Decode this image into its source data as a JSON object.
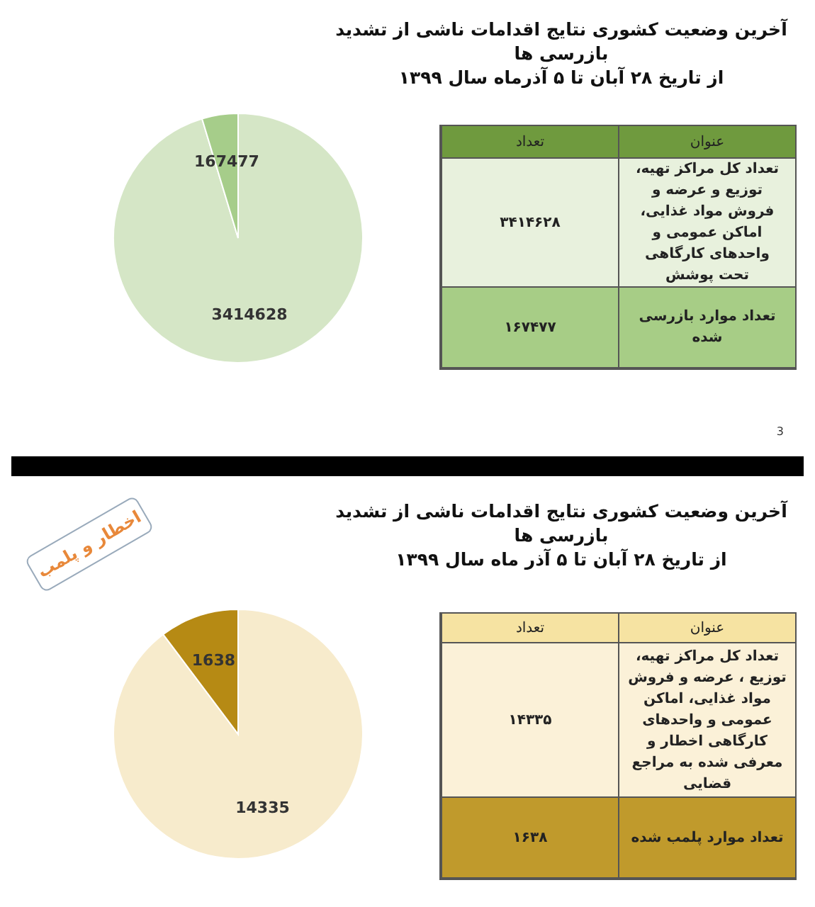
{
  "chart_data": [
    {
      "type": "pie",
      "title": "آخرین وضعیت کشوری نتایج اقدامات ناشی از تشدید بازرسی ها",
      "subtitle": "از تاریخ ۲۸ آبان تا ۵ آذرماه سال ۱۳۹۹",
      "categories": [
        null,
        null
      ],
      "values": [
        3414628,
        167477
      ],
      "colors": [
        "#d5e6c6",
        "#a6cd8a"
      ],
      "data_labels": true,
      "legend": false,
      "annotations": [
        "3"
      ]
    },
    {
      "type": "other",
      "annotations": [
        "عنوان",
        "تعداد",
        "تعداد کل مراکز تهیه، توزیع و عرضه و فروش مواد غذایی، اماکن عمومی و واحدهای کارگاهی تحت پوشش",
        "۳۴۱۴۶۲۸",
        "تعداد موارد بازرسی شده",
        "۱۶۷۴۷۷"
      ]
    },
    {
      "type": "pie",
      "title": "آخرین وضعیت کشوری نتایج اقدامات ناشی از تشدید بازرسی ها",
      "subtitle": "از تاریخ ۲۸ آبان تا ۵ آذر ماه سال ۱۳۹۹",
      "categories": [
        null,
        null
      ],
      "values": [
        14335,
        1638
      ],
      "colors": [
        "#f7ebcc",
        "#b68a14"
      ],
      "data_labels": true,
      "legend": false,
      "annotations": [
        "اخطار و پلمب"
      ]
    },
    {
      "type": "other",
      "annotations": [
        "عنوان",
        "تعداد",
        "تعداد کل مراکز تهیه، توزیع ، عرضه و فروش مواد غذایی، اماکن عمومی و واحدهای کارگاهی اخطار و معرفی شده به مراجع قضایی",
        "۱۴۳۳۵",
        "تعداد موارد پلمب شده",
        "۱۶۳۸"
      ]
    }
  ]
}
